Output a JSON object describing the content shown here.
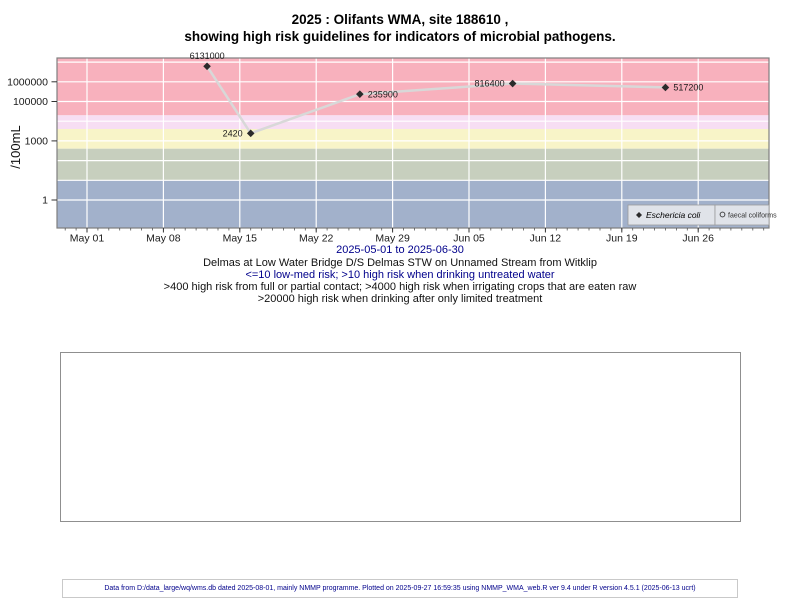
{
  "colors": {
    "band_above_20000": "#f8b1bd",
    "band_4000_20000": "#f7def3",
    "band_400_4000": "#f8f4c8",
    "band_10_400": "#c7cfbe",
    "band_below_10": "#a2b1cb",
    "navy_text": "#00008B",
    "data_line": "#d8d8d8",
    "data_point": "#2b2b2b",
    "legend_bg": "#e0e3e9",
    "plot_border": "#7f7f7f"
  },
  "figure": {
    "title_line1": "2025 : Olifants WMA, site 188610 ,",
    "title_line2": "showing high risk guidelines for indicators of microbial pathogens.",
    "x_subtitle": "2025-05-01 to 2025-06-30",
    "captions": {
      "site": "Delmas at Low Water Bridge D/S Delmas STW on Unnamed Stream from Witklip",
      "risk1": "<=10 low-med risk; >10 high risk when drinking untreated water",
      "risk2": ">400 high risk from full or partial contact; >4000 high risk when irrigating crops that are eaten raw",
      "risk3": ">20000 high risk when drinking after only limited treatment"
    },
    "footer": "Data from D:/data_large/wq/wms.db dated 2025-08-01, mainly NMMP programme. Plotted on 2025-09-27 16:59:35 using NMMP_WMA_web.R ver 9.4 under R version 4.5.1 (2025-06-13 ucrt)"
  },
  "chart_data": {
    "type": "line",
    "title": "2025 : Olifants WMA, site 188610, showing high risk guidelines for indicators of microbial pathogens.",
    "ylabel": "/100mL",
    "xlabel": "",
    "y_scale": "log10",
    "ylim": [
      0.04,
      16000000
    ],
    "x_range": [
      "2025-05-01",
      "2025-06-30"
    ],
    "grid": "white gridlines over colored risk bands",
    "legend_position": "bottom-right inside plot",
    "x_ticks": [
      {
        "label": "May 01",
        "date": "2025-05-01"
      },
      {
        "label": "May 08",
        "date": "2025-05-08"
      },
      {
        "label": "May 15",
        "date": "2025-05-15"
      },
      {
        "label": "May 22",
        "date": "2025-05-22"
      },
      {
        "label": "May 29",
        "date": "2025-05-29"
      },
      {
        "label": "Jun 05",
        "date": "2025-06-05"
      },
      {
        "label": "Jun 12",
        "date": "2025-06-12"
      },
      {
        "label": "Jun 19",
        "date": "2025-06-19"
      },
      {
        "label": "Jun 26",
        "date": "2025-06-26"
      }
    ],
    "y_ticks": [
      {
        "label": "1",
        "value": 1
      },
      {
        "label": "1000",
        "value": 1000
      },
      {
        "label": "100000",
        "value": 100000
      },
      {
        "label": "1000000",
        "value": 1000000
      }
    ],
    "risk_bands": [
      {
        "from": 20000,
        "to": null,
        "color": "#f8b1bd",
        "meaning": ">20000 high risk when drinking after only limited treatment"
      },
      {
        "from": 4000,
        "to": 20000,
        "color": "#f7def3",
        "meaning": ">4000 high risk when irrigating crops that are eaten raw"
      },
      {
        "from": 400,
        "to": 4000,
        "color": "#f8f4c8",
        "meaning": ">400 high risk from full or partial contact"
      },
      {
        "from": 10,
        "to": 400,
        "color": "#c7cfbe",
        "meaning": ">10 high risk when drinking untreated water"
      },
      {
        "from": null,
        "to": 10,
        "color": "#a2b1cb",
        "meaning": "<=10 low-med risk"
      }
    ],
    "series": [
      {
        "name": "Eschericia coli",
        "marker": "filled-diamond",
        "points": [
          {
            "date": "2025-05-12",
            "value": 6131000,
            "label": "6131000",
            "label_pos": "above"
          },
          {
            "date": "2025-05-16",
            "value": 2420,
            "label": "2420",
            "label_pos": "left"
          },
          {
            "date": "2025-05-26",
            "value": 235900,
            "label": "235900",
            "label_pos": "right"
          },
          {
            "date": "2025-06-09",
            "value": 816400,
            "label": "816400",
            "label_pos": "left"
          },
          {
            "date": "2025-06-23",
            "value": 517200,
            "label": "517200",
            "label_pos": "right"
          }
        ]
      },
      {
        "name": "faecal coliforms",
        "marker": "open-circle",
        "points": []
      }
    ],
    "legend": [
      {
        "label": "Eschericia coli",
        "marker": "filled-diamond",
        "italic": true
      },
      {
        "label": "faecal coliforms",
        "marker": "open-circle",
        "italic": false
      }
    ]
  }
}
